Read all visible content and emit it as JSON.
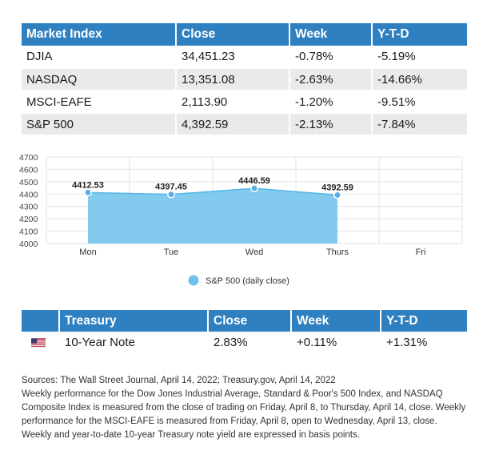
{
  "market_table": {
    "headers": [
      "Market Index",
      "Close",
      "Week",
      "Y-T-D"
    ],
    "rows": [
      [
        "DJIA",
        "34,451.23",
        "-0.78%",
        "-5.19%"
      ],
      [
        "NASDAQ",
        "13,351.08",
        "-2.63%",
        "-14.66%"
      ],
      [
        "MSCI-EAFE",
        "2,113.90",
        "-1.20%",
        "-9.51%"
      ],
      [
        "S&P 500",
        "4,392.59",
        "-2.13%",
        "-7.84%"
      ]
    ]
  },
  "chart_data": {
    "type": "area",
    "categories": [
      "Mon",
      "Tue",
      "Wed",
      "Thurs",
      "Fri"
    ],
    "series": [
      {
        "name": "S&P 500 (daily close)",
        "values": [
          4412.53,
          4397.45,
          4446.59,
          4392.59,
          null
        ]
      }
    ],
    "data_labels": [
      "4412.53",
      "4397.45",
      "4446.59",
      "4392.59"
    ],
    "yticks": [
      "4700",
      "4600",
      "4500",
      "4400",
      "4300",
      "4200",
      "4100",
      "4000"
    ],
    "ylim": [
      4000,
      4700
    ],
    "grid": true,
    "legend_position": "bottom",
    "color": "#6cc2ec",
    "marker_color": "#5aaee6"
  },
  "treasury_table": {
    "headers": [
      "Treasury",
      "Close",
      "Week",
      "Y-T-D"
    ],
    "rows": [
      {
        "icon": "us-flag-icon",
        "name": "10-Year Note",
        "close": "2.83%",
        "week": "+0.11%",
        "ytd": "+1.31%"
      }
    ]
  },
  "notes": {
    "sources": "Sources: The Wall Street Journal, April 14, 2022; Treasury.gov, April 14, 2022",
    "body": "Weekly performance for the Dow Jones Industrial Average, Standard & Poor's 500 Index, and NASDAQ Composite Index is measured from the close of trading on Friday, April 8, to Thursday, April 14, close. Weekly performance for the MSCI-EAFE is measured from Friday, April 8, open to Wednesday, April 13, close. Weekly and year-to-date 10-year Treasury note yield are expressed in basis points."
  },
  "colors": {
    "header_bg": "#2f80c1",
    "alt_row": "#e9eaeb"
  }
}
